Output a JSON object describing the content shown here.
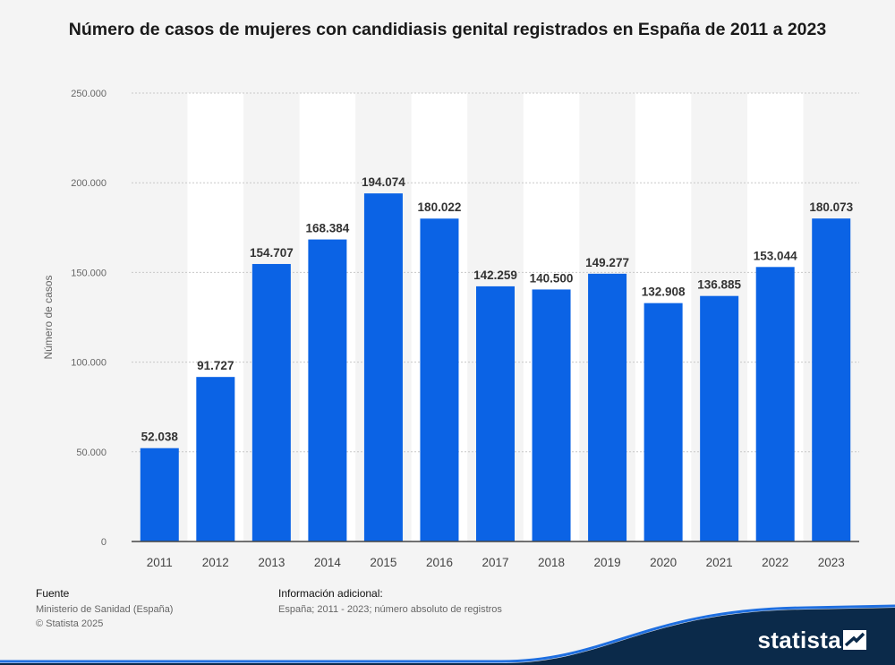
{
  "header": {
    "title": "Número de casos de mujeres con candidiasis genital registrados en España de 2011 a 2023"
  },
  "chart_data": {
    "type": "bar",
    "title": "Número de casos de mujeres con candidiasis genital registrados en España de 2011 a 2023",
    "xlabel": "",
    "ylabel": "Número de casos",
    "categories": [
      "2011",
      "2012",
      "2013",
      "2014",
      "2015",
      "2016",
      "2017",
      "2018",
      "2019",
      "2020",
      "2021",
      "2022",
      "2023"
    ],
    "values": [
      52038,
      91727,
      154707,
      168384,
      194074,
      180022,
      142259,
      140500,
      149277,
      132908,
      136885,
      153044,
      180073
    ],
    "value_labels": [
      "52.038",
      "91.727",
      "154.707",
      "168.384",
      "194.074",
      "180.022",
      "142.259",
      "140.500",
      "149.277",
      "132.908",
      "136.885",
      "153.044",
      "180.073"
    ],
    "ylim": [
      0,
      250000
    ],
    "yticks": [
      0,
      50000,
      100000,
      150000,
      200000,
      250000
    ],
    "ytick_labels": [
      "0",
      "50.000",
      "100.000",
      "150.000",
      "200.000",
      "250.000"
    ],
    "grid": true,
    "bar_color": "#0b63e5"
  },
  "footer": {
    "source_heading": "Fuente",
    "source_line": "Ministerio de Sanidad (España)",
    "copyright": "© Statista 2025",
    "info_heading": "Información adicional:",
    "info_line": "España; 2011 - 2023; número absoluto de registros"
  },
  "brand": {
    "logo_text": "statista",
    "logo_icon": "statista-logo-icon",
    "wave_color": "#0b2a4a"
  }
}
